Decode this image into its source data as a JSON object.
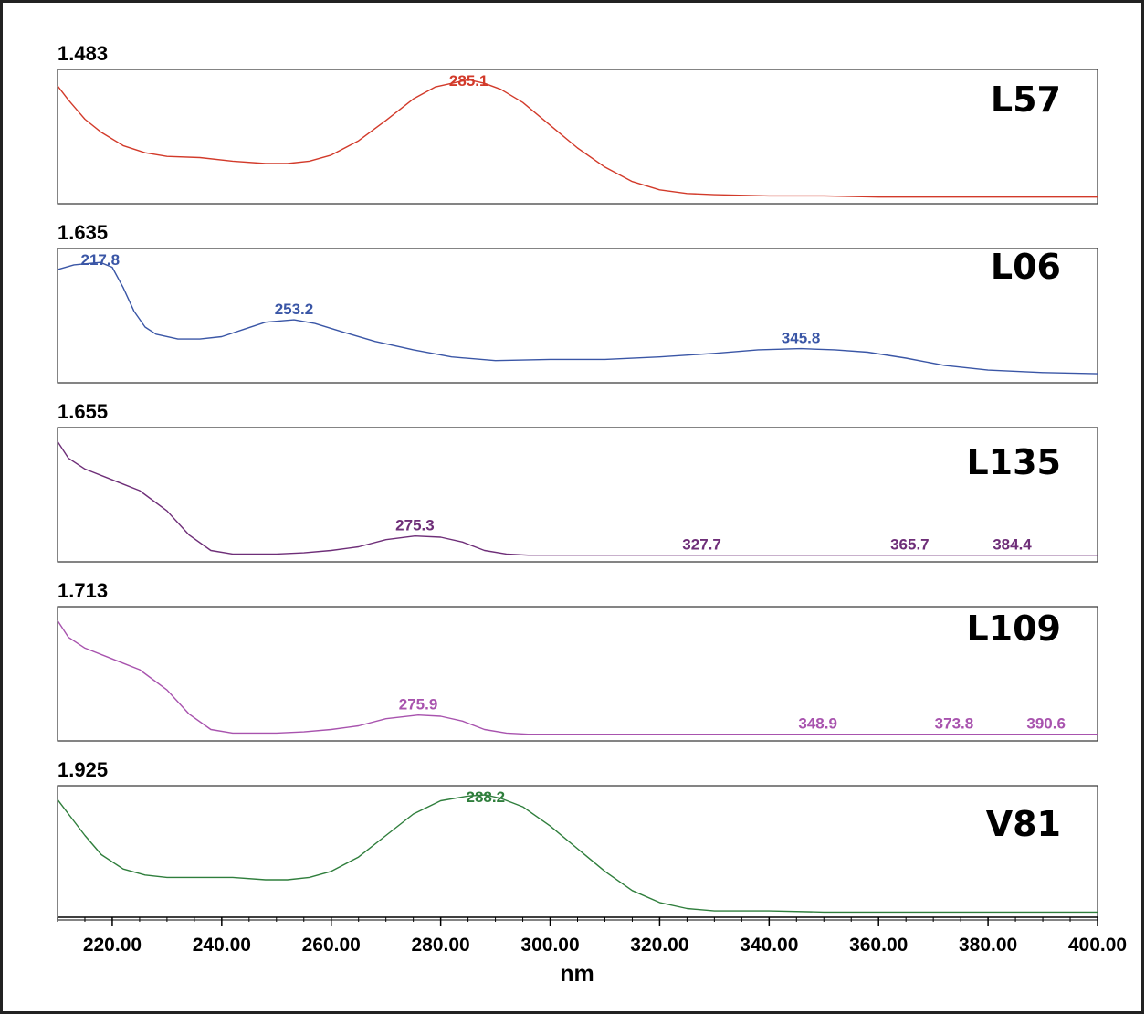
{
  "chart_data": [
    {
      "type": "line",
      "sample": "L57",
      "y_max_label": "1.483",
      "color": "#d23a2a",
      "x": [
        210,
        212,
        215,
        218,
        222,
        226,
        230,
        236,
        242,
        248,
        252,
        256,
        260,
        265,
        270,
        275,
        279,
        283,
        285.1,
        288,
        291,
        295,
        300,
        305,
        310,
        315,
        320,
        325,
        330,
        340,
        350,
        360,
        370,
        380,
        390,
        400
      ],
      "y": [
        0.94,
        0.82,
        0.66,
        0.55,
        0.44,
        0.38,
        0.35,
        0.34,
        0.31,
        0.29,
        0.29,
        0.31,
        0.36,
        0.48,
        0.65,
        0.83,
        0.93,
        0.97,
        0.99,
        0.96,
        0.91,
        0.8,
        0.61,
        0.42,
        0.26,
        0.14,
        0.07,
        0.04,
        0.03,
        0.02,
        0.02,
        0.01,
        0.01,
        0.01,
        0.01,
        0.01
      ],
      "peaks": [
        {
          "x": 285.1,
          "label": "285.1"
        }
      ],
      "xlim": [
        210,
        400
      ],
      "ylim": [
        0,
        1
      ]
    },
    {
      "type": "line",
      "sample": "L06",
      "y_max_label": "1.635",
      "color": "#3a56a6",
      "x": [
        210,
        213,
        217.8,
        220,
        222,
        224,
        226,
        228,
        232,
        236,
        240,
        244,
        248,
        253.2,
        257,
        262,
        268,
        275,
        282,
        290,
        300,
        310,
        320,
        330,
        338,
        345.8,
        352,
        358,
        365,
        372,
        380,
        390,
        400
      ],
      "y": [
        0.9,
        0.94,
        0.96,
        0.92,
        0.75,
        0.55,
        0.42,
        0.36,
        0.32,
        0.32,
        0.34,
        0.4,
        0.46,
        0.48,
        0.45,
        0.38,
        0.3,
        0.23,
        0.17,
        0.14,
        0.15,
        0.15,
        0.17,
        0.2,
        0.23,
        0.24,
        0.23,
        0.21,
        0.16,
        0.1,
        0.06,
        0.04,
        0.03
      ],
      "peaks": [
        {
          "x": 217.8,
          "label": "217.8"
        },
        {
          "x": 253.2,
          "label": "253.2"
        },
        {
          "x": 345.8,
          "label": "345.8"
        }
      ],
      "xlim": [
        210,
        400
      ],
      "ylim": [
        0,
        1
      ]
    },
    {
      "type": "line",
      "sample": "L135",
      "y_max_label": "1.655",
      "color": "#6e2e78",
      "x": [
        210,
        212,
        215,
        220,
        225,
        230,
        234,
        238,
        242,
        246,
        250,
        255,
        260,
        265,
        270,
        275.3,
        280,
        284,
        288,
        292,
        296,
        300,
        327.7,
        365.7,
        384.4,
        400
      ],
      "y": [
        0.96,
        0.82,
        0.73,
        0.64,
        0.55,
        0.38,
        0.18,
        0.05,
        0.02,
        0.02,
        0.02,
        0.03,
        0.05,
        0.08,
        0.14,
        0.17,
        0.16,
        0.12,
        0.05,
        0.02,
        0.01,
        0.01,
        0.01,
        0.01,
        0.01,
        0.01
      ],
      "peaks": [
        {
          "x": 275.3,
          "label": "275.3"
        },
        {
          "x": 327.7,
          "label": "327.7"
        },
        {
          "x": 365.7,
          "label": "365.7"
        },
        {
          "x": 384.4,
          "label": "384.4"
        }
      ],
      "xlim": [
        210,
        400
      ],
      "ylim": [
        0,
        1
      ]
    },
    {
      "type": "line",
      "sample": "L109",
      "y_max_label": "1.713",
      "color": "#a853ae",
      "x": [
        210,
        212,
        215,
        220,
        225,
        230,
        234,
        238,
        242,
        246,
        250,
        255,
        260,
        265,
        270,
        275.9,
        280,
        284,
        288,
        292,
        296,
        300,
        348.9,
        373.8,
        390.6,
        400
      ],
      "y": [
        0.96,
        0.82,
        0.73,
        0.64,
        0.55,
        0.38,
        0.18,
        0.05,
        0.02,
        0.02,
        0.02,
        0.03,
        0.05,
        0.08,
        0.14,
        0.17,
        0.16,
        0.12,
        0.05,
        0.02,
        0.01,
        0.01,
        0.01,
        0.01,
        0.01,
        0.01
      ],
      "peaks": [
        {
          "x": 275.9,
          "label": "275.9"
        },
        {
          "x": 348.9,
          "label": "348.9"
        },
        {
          "x": 373.8,
          "label": "373.8"
        },
        {
          "x": 390.6,
          "label": "390.6"
        }
      ],
      "xlim": [
        210,
        400
      ],
      "ylim": [
        0,
        1
      ]
    },
    {
      "type": "line",
      "sample": "V81",
      "y_max_label": "1.925",
      "color": "#2f7e3c",
      "x": [
        210,
        212,
        215,
        218,
        222,
        226,
        230,
        236,
        242,
        248,
        252,
        256,
        260,
        265,
        270,
        275,
        280,
        285,
        288.2,
        291,
        295,
        300,
        305,
        310,
        315,
        320,
        325,
        330,
        340,
        350,
        360,
        370,
        380,
        390,
        400
      ],
      "y": [
        0.96,
        0.84,
        0.66,
        0.5,
        0.38,
        0.33,
        0.31,
        0.31,
        0.31,
        0.29,
        0.29,
        0.31,
        0.36,
        0.48,
        0.66,
        0.84,
        0.95,
        0.99,
        1.0,
        0.97,
        0.9,
        0.74,
        0.55,
        0.36,
        0.2,
        0.1,
        0.05,
        0.03,
        0.03,
        0.02,
        0.02,
        0.02,
        0.02,
        0.02,
        0.02
      ],
      "peaks": [
        {
          "x": 288.2,
          "label": "288.2"
        }
      ],
      "xlim": [
        210,
        400
      ],
      "ylim": [
        0,
        1
      ]
    }
  ],
  "x_axis": {
    "label": "nm",
    "ticks": [
      220,
      240,
      260,
      280,
      300,
      320,
      340,
      360,
      380,
      400
    ],
    "tick_labels": [
      "220.00",
      "240.00",
      "260.00",
      "280.00",
      "300.00",
      "320.00",
      "340.00",
      "360.00",
      "380.00",
      "400.00"
    ],
    "range": [
      210,
      400
    ]
  }
}
